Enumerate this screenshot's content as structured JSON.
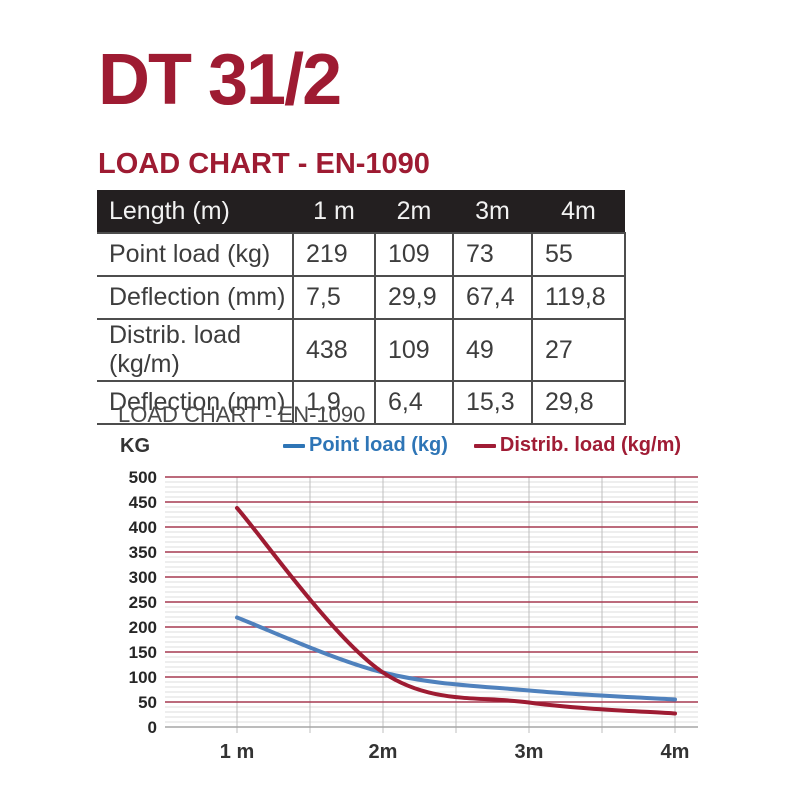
{
  "page": {
    "title": "DT 31/2",
    "section_title": "LOAD CHART - EN-1090"
  },
  "colors": {
    "accent_red": "#9e1b32",
    "table_header_bg": "#231f20",
    "point_load_blue": "#4f81bd",
    "legend_blue_text": "#2e75b6",
    "legend_red_text": "#a01c35"
  },
  "table": {
    "columns": [
      "Length (m)",
      "1 m",
      "2m",
      "3m",
      "4m"
    ],
    "rows": [
      {
        "label": "Point load (kg)",
        "values": [
          "219",
          "109",
          "73",
          "55"
        ]
      },
      {
        "label": "Deflection (mm)",
        "values": [
          "7,5",
          "29,9",
          "67,4",
          "119,8"
        ]
      },
      {
        "label": "Distrib. load (kg/m)",
        "values": [
          "438",
          "109",
          "49",
          "27"
        ]
      },
      {
        "label": "Deflection (mm)",
        "values": [
          "1,9",
          "6,4",
          "15,3",
          "29,8"
        ]
      }
    ]
  },
  "chart": {
    "title": "LOAD CHART - EN-1090",
    "y_unit": "KG"
  },
  "chart_data": {
    "type": "line",
    "title": "LOAD CHART - EN-1090",
    "ylabel": "KG",
    "x": [
      1,
      2,
      3,
      4
    ],
    "x_tick_labels": [
      "1 m",
      "2m",
      "3m",
      "4m"
    ],
    "series": [
      {
        "name": "Point load (kg)",
        "values": [
          219,
          109,
          73,
          55
        ],
        "color": "#4f81bd",
        "legend_text_color": "#2e75b6"
      },
      {
        "name": "Distrib. load (kg/m)",
        "values": [
          438,
          109,
          49,
          27
        ],
        "color": "#9e1b32",
        "legend_text_color": "#a01c35"
      }
    ],
    "ylim": [
      0,
      500
    ],
    "y_major_step": 50,
    "y_minor_step": 10,
    "x_grid_step": 0.5,
    "grid": true,
    "legend_position": "top",
    "grid_major_color": "#a63a50",
    "grid_minor_color": "#dcdcdc",
    "vgrid_color": "#bfbfbf",
    "baseline_color": "#a6a6a6",
    "smooth": true
  }
}
